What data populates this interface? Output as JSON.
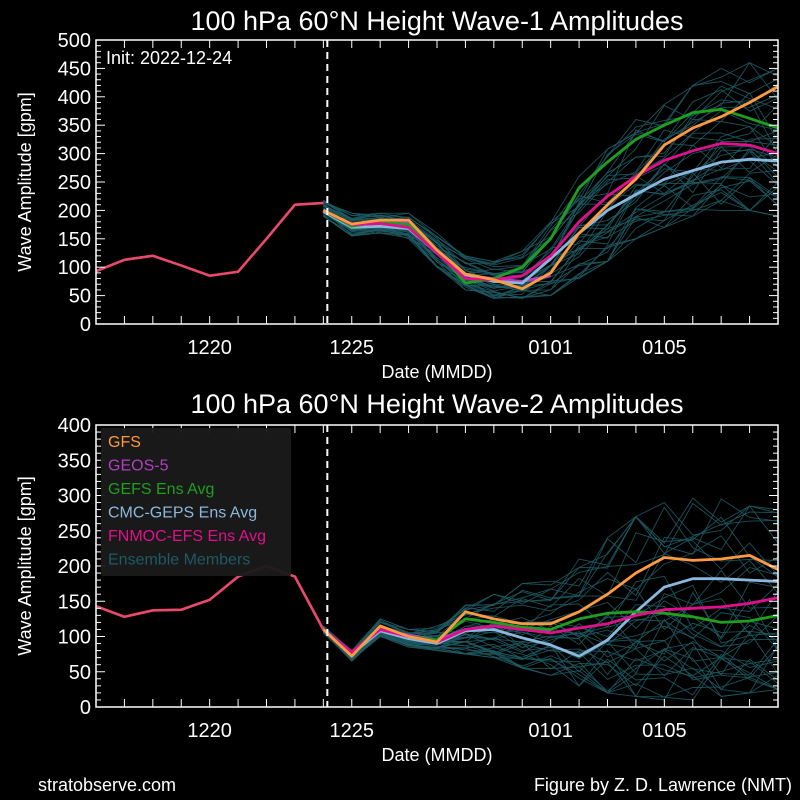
{
  "footer": {
    "site": "stratobserve.com",
    "credit": "Figure by Z. D. Lawrence (NMT)"
  },
  "colors": {
    "GFS": "#ff9a40",
    "GEOS-5": "#b040c0",
    "GEFS Ens Avg": "#1f9e1f",
    "CMC-GEPS Ens Avg": "#8ab8dc",
    "FNMOC-EFS Ens Avg": "#e0108c",
    "Ensemble Members": "#1e5a63",
    "background": "#000000",
    "init_line": "#ffffff"
  },
  "chart_data": [
    {
      "type": "line",
      "title": "100 hPa 60°N    Height Wave-1 Amplitudes",
      "init_text": "Init: 2022-12-24",
      "init_date": "2022-12-24",
      "xlabel": "Date (MMDD)",
      "ylabel": "Wave Amplitude [gpm]",
      "xlim": [
        "2022-12-16",
        "2023-01-09"
      ],
      "ylim": [
        0,
        500
      ],
      "yticks": [
        0,
        50,
        100,
        150,
        200,
        250,
        300,
        350,
        400,
        450,
        500
      ],
      "xtick_labels": [
        {
          "date": "2022-12-20",
          "label": "1220"
        },
        {
          "date": "2022-12-25",
          "label": "1225"
        },
        {
          "date": "2023-01-01",
          "label": "0101"
        },
        {
          "date": "2023-01-05",
          "label": "0105"
        }
      ],
      "legend": null,
      "analysis": {
        "dates": [
          "2022-12-16",
          "2022-12-17",
          "2022-12-18",
          "2022-12-19",
          "2022-12-20",
          "2022-12-21",
          "2022-12-22",
          "2022-12-23",
          "2022-12-24"
        ],
        "values": [
          93,
          113,
          120,
          103,
          85,
          92,
          150,
          210,
          213
        ]
      },
      "ensemble_envelope": {
        "dates": [
          "2022-12-24",
          "2022-12-25",
          "2022-12-26",
          "2022-12-27",
          "2022-12-28",
          "2022-12-29",
          "2022-12-30",
          "2022-12-31",
          "2023-01-01",
          "2023-01-02",
          "2023-01-03",
          "2023-01-04",
          "2023-01-05",
          "2023-01-06",
          "2023-01-07",
          "2023-01-08",
          "2023-01-09"
        ],
        "lower": [
          190,
          155,
          160,
          150,
          100,
          60,
          45,
          45,
          50,
          80,
          110,
          150,
          170,
          190,
          200,
          200,
          190
        ],
        "upper": [
          220,
          195,
          195,
          195,
          160,
          120,
          110,
          130,
          180,
          260,
          320,
          360,
          390,
          420,
          450,
          460,
          450
        ]
      },
      "series": [
        {
          "name": "GFS",
          "dates": [
            "2022-12-24",
            "2022-12-25",
            "2022-12-26",
            "2022-12-27",
            "2022-12-28",
            "2022-12-29",
            "2022-12-30",
            "2022-12-31",
            "2023-01-01",
            "2023-01-02",
            "2023-01-03",
            "2023-01-04",
            "2023-01-05",
            "2023-01-06",
            "2023-01-07",
            "2023-01-08",
            "2023-01-09"
          ],
          "values": [
            200,
            176,
            183,
            183,
            130,
            88,
            78,
            62,
            90,
            160,
            210,
            255,
            315,
            345,
            365,
            390,
            418
          ]
        },
        {
          "name": "GEOS-5",
          "dates": [
            "2022-12-24",
            "2022-12-25",
            "2022-12-26",
            "2022-12-27",
            "2022-12-28",
            "2022-12-29",
            "2022-12-30",
            "2022-12-31",
            "2023-01-01"
          ],
          "values": [
            200,
            175,
            182,
            178,
            128,
            86,
            80,
            75,
            85
          ]
        },
        {
          "name": "GEFS Ens Avg",
          "dates": [
            "2022-12-24",
            "2022-12-25",
            "2022-12-26",
            "2022-12-27",
            "2022-12-28",
            "2022-12-29",
            "2022-12-30",
            "2022-12-31",
            "2023-01-01",
            "2023-01-02",
            "2023-01-03",
            "2023-01-04",
            "2023-01-05",
            "2023-01-06",
            "2023-01-07",
            "2023-01-08",
            "2023-01-09"
          ],
          "values": [
            200,
            172,
            180,
            175,
            130,
            72,
            80,
            100,
            150,
            240,
            285,
            325,
            350,
            372,
            378,
            362,
            345
          ]
        },
        {
          "name": "CMC-GEPS Ens Avg",
          "dates": [
            "2022-12-24",
            "2022-12-25",
            "2022-12-26",
            "2022-12-27",
            "2022-12-28",
            "2022-12-29",
            "2022-12-30",
            "2022-12-31",
            "2023-01-01",
            "2023-01-02",
            "2023-01-03",
            "2023-01-04",
            "2023-01-05",
            "2023-01-06",
            "2023-01-07",
            "2023-01-08",
            "2023-01-09"
          ],
          "values": [
            198,
            170,
            172,
            168,
            125,
            87,
            75,
            72,
            115,
            160,
            200,
            228,
            255,
            270,
            285,
            290,
            287
          ]
        },
        {
          "name": "FNMOC-EFS Ens Avg",
          "dates": [
            "2022-12-24",
            "2022-12-25",
            "2022-12-26",
            "2022-12-27",
            "2022-12-28",
            "2022-12-29",
            "2022-12-30",
            "2022-12-31",
            "2023-01-01",
            "2023-01-02",
            "2023-01-03",
            "2023-01-04",
            "2023-01-05",
            "2023-01-06",
            "2023-01-07",
            "2023-01-08",
            "2023-01-09"
          ],
          "values": [
            200,
            175,
            177,
            170,
            125,
            80,
            78,
            85,
            120,
            180,
            225,
            260,
            288,
            305,
            318,
            315,
            300
          ]
        }
      ]
    },
    {
      "type": "line",
      "title": "100 hPa 60°N   Height Wave-2 Amplitudes",
      "init_text": "",
      "init_date": "2022-12-24",
      "xlabel": "Date (MMDD)",
      "ylabel": "Wave Amplitude [gpm]",
      "xlim": [
        "2022-12-16",
        "2023-01-09"
      ],
      "ylim": [
        0,
        400
      ],
      "yticks": [
        0,
        50,
        100,
        150,
        200,
        250,
        300,
        350,
        400
      ],
      "xtick_labels": [
        {
          "date": "2022-12-20",
          "label": "1220"
        },
        {
          "date": "2022-12-25",
          "label": "1225"
        },
        {
          "date": "2023-01-01",
          "label": "0101"
        },
        {
          "date": "2023-01-05",
          "label": "0105"
        }
      ],
      "legend": {
        "placement": "top-left",
        "entries": [
          "GFS",
          "GEOS-5",
          "GEFS Ens Avg",
          "CMC-GEPS Ens Avg",
          "FNMOC-EFS Ens Avg",
          "Ensemble Members"
        ]
      },
      "analysis": {
        "dates": [
          "2022-12-16",
          "2022-12-17",
          "2022-12-18",
          "2022-12-19",
          "2022-12-20",
          "2022-12-21",
          "2022-12-22",
          "2022-12-23",
          "2022-12-24"
        ],
        "values": [
          143,
          128,
          137,
          138,
          152,
          185,
          200,
          185,
          110
        ]
      },
      "ensemble_envelope": {
        "dates": [
          "2022-12-24",
          "2022-12-25",
          "2022-12-26",
          "2022-12-27",
          "2022-12-28",
          "2022-12-29",
          "2022-12-30",
          "2022-12-31",
          "2023-01-01",
          "2023-01-02",
          "2023-01-03",
          "2023-01-04",
          "2023-01-05",
          "2023-01-06",
          "2023-01-07",
          "2023-01-08",
          "2023-01-09"
        ],
        "lower": [
          105,
          65,
          100,
          85,
          80,
          75,
          70,
          55,
          45,
          30,
          20,
          15,
          10,
          10,
          15,
          20,
          25
        ],
        "upper": [
          115,
          80,
          125,
          110,
          115,
          145,
          160,
          175,
          185,
          210,
          240,
          270,
          290,
          300,
          295,
          285,
          280
        ]
      },
      "series": [
        {
          "name": "GFS",
          "dates": [
            "2022-12-24",
            "2022-12-25",
            "2022-12-26",
            "2022-12-27",
            "2022-12-28",
            "2022-12-29",
            "2022-12-30",
            "2022-12-31",
            "2023-01-01",
            "2023-01-02",
            "2023-01-03",
            "2023-01-04",
            "2023-01-05",
            "2023-01-06",
            "2023-01-07",
            "2023-01-08",
            "2023-01-09"
          ],
          "values": [
            110,
            72,
            115,
            100,
            92,
            135,
            125,
            118,
            118,
            135,
            160,
            190,
            212,
            208,
            210,
            215,
            195
          ]
        },
        {
          "name": "GEOS-5",
          "dates": [
            "2022-12-24",
            "2022-12-25",
            "2022-12-26",
            "2022-12-27",
            "2022-12-28",
            "2022-12-29",
            "2022-12-30",
            "2022-12-31",
            "2023-01-01"
          ],
          "values": [
            110,
            75,
            110,
            102,
            95,
            110,
            115,
            110,
            108
          ]
        },
        {
          "name": "GEFS Ens Avg",
          "dates": [
            "2022-12-24",
            "2022-12-25",
            "2022-12-26",
            "2022-12-27",
            "2022-12-28",
            "2022-12-29",
            "2022-12-30",
            "2022-12-31",
            "2023-01-01",
            "2023-01-02",
            "2023-01-03",
            "2023-01-04",
            "2023-01-05",
            "2023-01-06",
            "2023-01-07",
            "2023-01-08",
            "2023-01-09"
          ],
          "values": [
            110,
            75,
            112,
            100,
            95,
            125,
            120,
            113,
            110,
            125,
            133,
            135,
            133,
            128,
            120,
            122,
            130
          ]
        },
        {
          "name": "CMC-GEPS Ens Avg",
          "dates": [
            "2022-12-24",
            "2022-12-25",
            "2022-12-26",
            "2022-12-27",
            "2022-12-28",
            "2022-12-29",
            "2022-12-30",
            "2022-12-31",
            "2023-01-01",
            "2023-01-02",
            "2023-01-03",
            "2023-01-04",
            "2023-01-05",
            "2023-01-06",
            "2023-01-07",
            "2023-01-08",
            "2023-01-09"
          ],
          "values": [
            110,
            75,
            108,
            97,
            90,
            108,
            110,
            98,
            88,
            72,
            95,
            135,
            170,
            182,
            182,
            180,
            178
          ]
        },
        {
          "name": "FNMOC-EFS Ens Avg",
          "dates": [
            "2022-12-24",
            "2022-12-25",
            "2022-12-26",
            "2022-12-27",
            "2022-12-28",
            "2022-12-29",
            "2022-12-30",
            "2022-12-31",
            "2023-01-01",
            "2023-01-02",
            "2023-01-03",
            "2023-01-04",
            "2023-01-05",
            "2023-01-06",
            "2023-01-07",
            "2023-01-08",
            "2023-01-09"
          ],
          "values": [
            110,
            78,
            110,
            100,
            92,
            110,
            115,
            110,
            105,
            112,
            118,
            130,
            138,
            140,
            142,
            147,
            155
          ]
        }
      ]
    }
  ]
}
